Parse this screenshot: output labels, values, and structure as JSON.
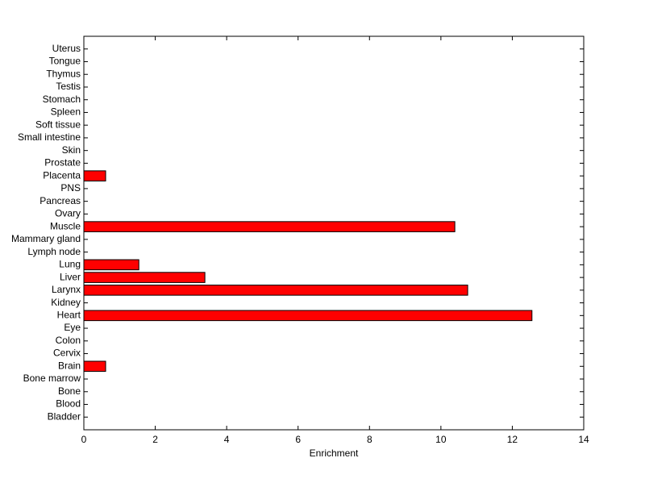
{
  "chart_data": {
    "type": "barh",
    "xlabel": "Enrichment",
    "categories": [
      "Bladder",
      "Blood",
      "Bone",
      "Bone marrow",
      "Brain",
      "Cervix",
      "Colon",
      "Eye",
      "Heart",
      "Kidney",
      "Larynx",
      "Liver",
      "Lung",
      "Lymph node",
      "Mammary gland",
      "Muscle",
      "Ovary",
      "Pancreas",
      "PNS",
      "Placenta",
      "Prostate",
      "Skin",
      "Small intestine",
      "Soft tissue",
      "Spleen",
      "Stomach",
      "Testis",
      "Thymus",
      "Tongue",
      "Uterus"
    ],
    "values": [
      0,
      0,
      0,
      0,
      0.61,
      0,
      0,
      0,
      12.55,
      0,
      10.75,
      3.39,
      1.54,
      0,
      0,
      10.39,
      0,
      0,
      0,
      0.61,
      0,
      0,
      0,
      0,
      0,
      0,
      0,
      0,
      0,
      0
    ],
    "color": "#ff0000",
    "xlim": [
      0,
      14
    ],
    "xticks": [
      0,
      2,
      4,
      6,
      8,
      10,
      12,
      14
    ]
  }
}
